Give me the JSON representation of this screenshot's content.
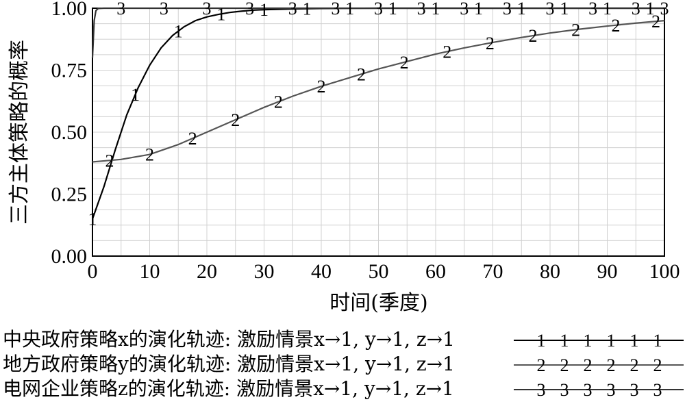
{
  "chart_data": {
    "type": "line",
    "xlabel": "时间(季度)",
    "ylabel": "三方主体策略的概率",
    "xlim": [
      0,
      100
    ],
    "ylim": [
      0,
      1
    ],
    "xticks": [
      "0",
      "10",
      "20",
      "30",
      "40",
      "50",
      "60",
      "70",
      "80",
      "90",
      "100"
    ],
    "yticks": [
      "0.00",
      "0.25",
      "0.50",
      "0.75",
      "1.00"
    ],
    "grid": true,
    "series": [
      {
        "name": "中央政府策略x的演化轨迹: 激励情景x→1, y→1, z→1",
        "marker": "1",
        "color": "#000000",
        "x": [
          0,
          2,
          4,
          6,
          8,
          10,
          12,
          14,
          16,
          18,
          20,
          22,
          24,
          26,
          28,
          30,
          35,
          40,
          50,
          60,
          70,
          80,
          90,
          100
        ],
        "y": [
          0.15,
          0.28,
          0.43,
          0.57,
          0.68,
          0.77,
          0.84,
          0.89,
          0.925,
          0.95,
          0.965,
          0.975,
          0.983,
          0.988,
          0.992,
          0.994,
          0.997,
          0.999,
          1.0,
          1.0,
          1.0,
          1.0,
          1.0,
          1.0
        ],
        "marker_x": [
          0,
          7.5,
          15,
          22.5,
          30,
          37.5,
          45,
          52.5,
          60,
          67.5,
          75,
          82.5,
          90,
          97.5
        ]
      },
      {
        "name": "地方政府策略y的演化轨迹: 激励情景x→1, y→1, z→1",
        "marker": "2",
        "color": "#555555",
        "x": [
          0,
          5,
          10,
          15,
          20,
          25,
          30,
          35,
          40,
          45,
          50,
          55,
          60,
          65,
          70,
          75,
          80,
          85,
          90,
          95,
          100
        ],
        "y": [
          0.38,
          0.39,
          0.41,
          0.45,
          0.5,
          0.55,
          0.6,
          0.645,
          0.685,
          0.72,
          0.755,
          0.785,
          0.815,
          0.84,
          0.862,
          0.882,
          0.9,
          0.915,
          0.928,
          0.94,
          0.95
        ],
        "marker_x": [
          3,
          10,
          17.5,
          25,
          32.5,
          40,
          47,
          54.5,
          62,
          69.5,
          77,
          84.5,
          91.5,
          98.5
        ]
      },
      {
        "name": "电网企业策略z的演化轨迹: 激励情景x→1, y→1, z→1",
        "marker": "3",
        "color": "#333333",
        "x": [
          0,
          0.3,
          0.6,
          1,
          2,
          100
        ],
        "y": [
          0.8,
          0.95,
          0.99,
          0.999,
          1.0,
          1.0
        ],
        "marker_x": [
          5,
          12.5,
          20,
          27.5,
          35,
          42.5,
          50,
          57.5,
          65,
          72.5,
          80,
          87.5,
          95,
          100
        ]
      }
    ]
  }
}
